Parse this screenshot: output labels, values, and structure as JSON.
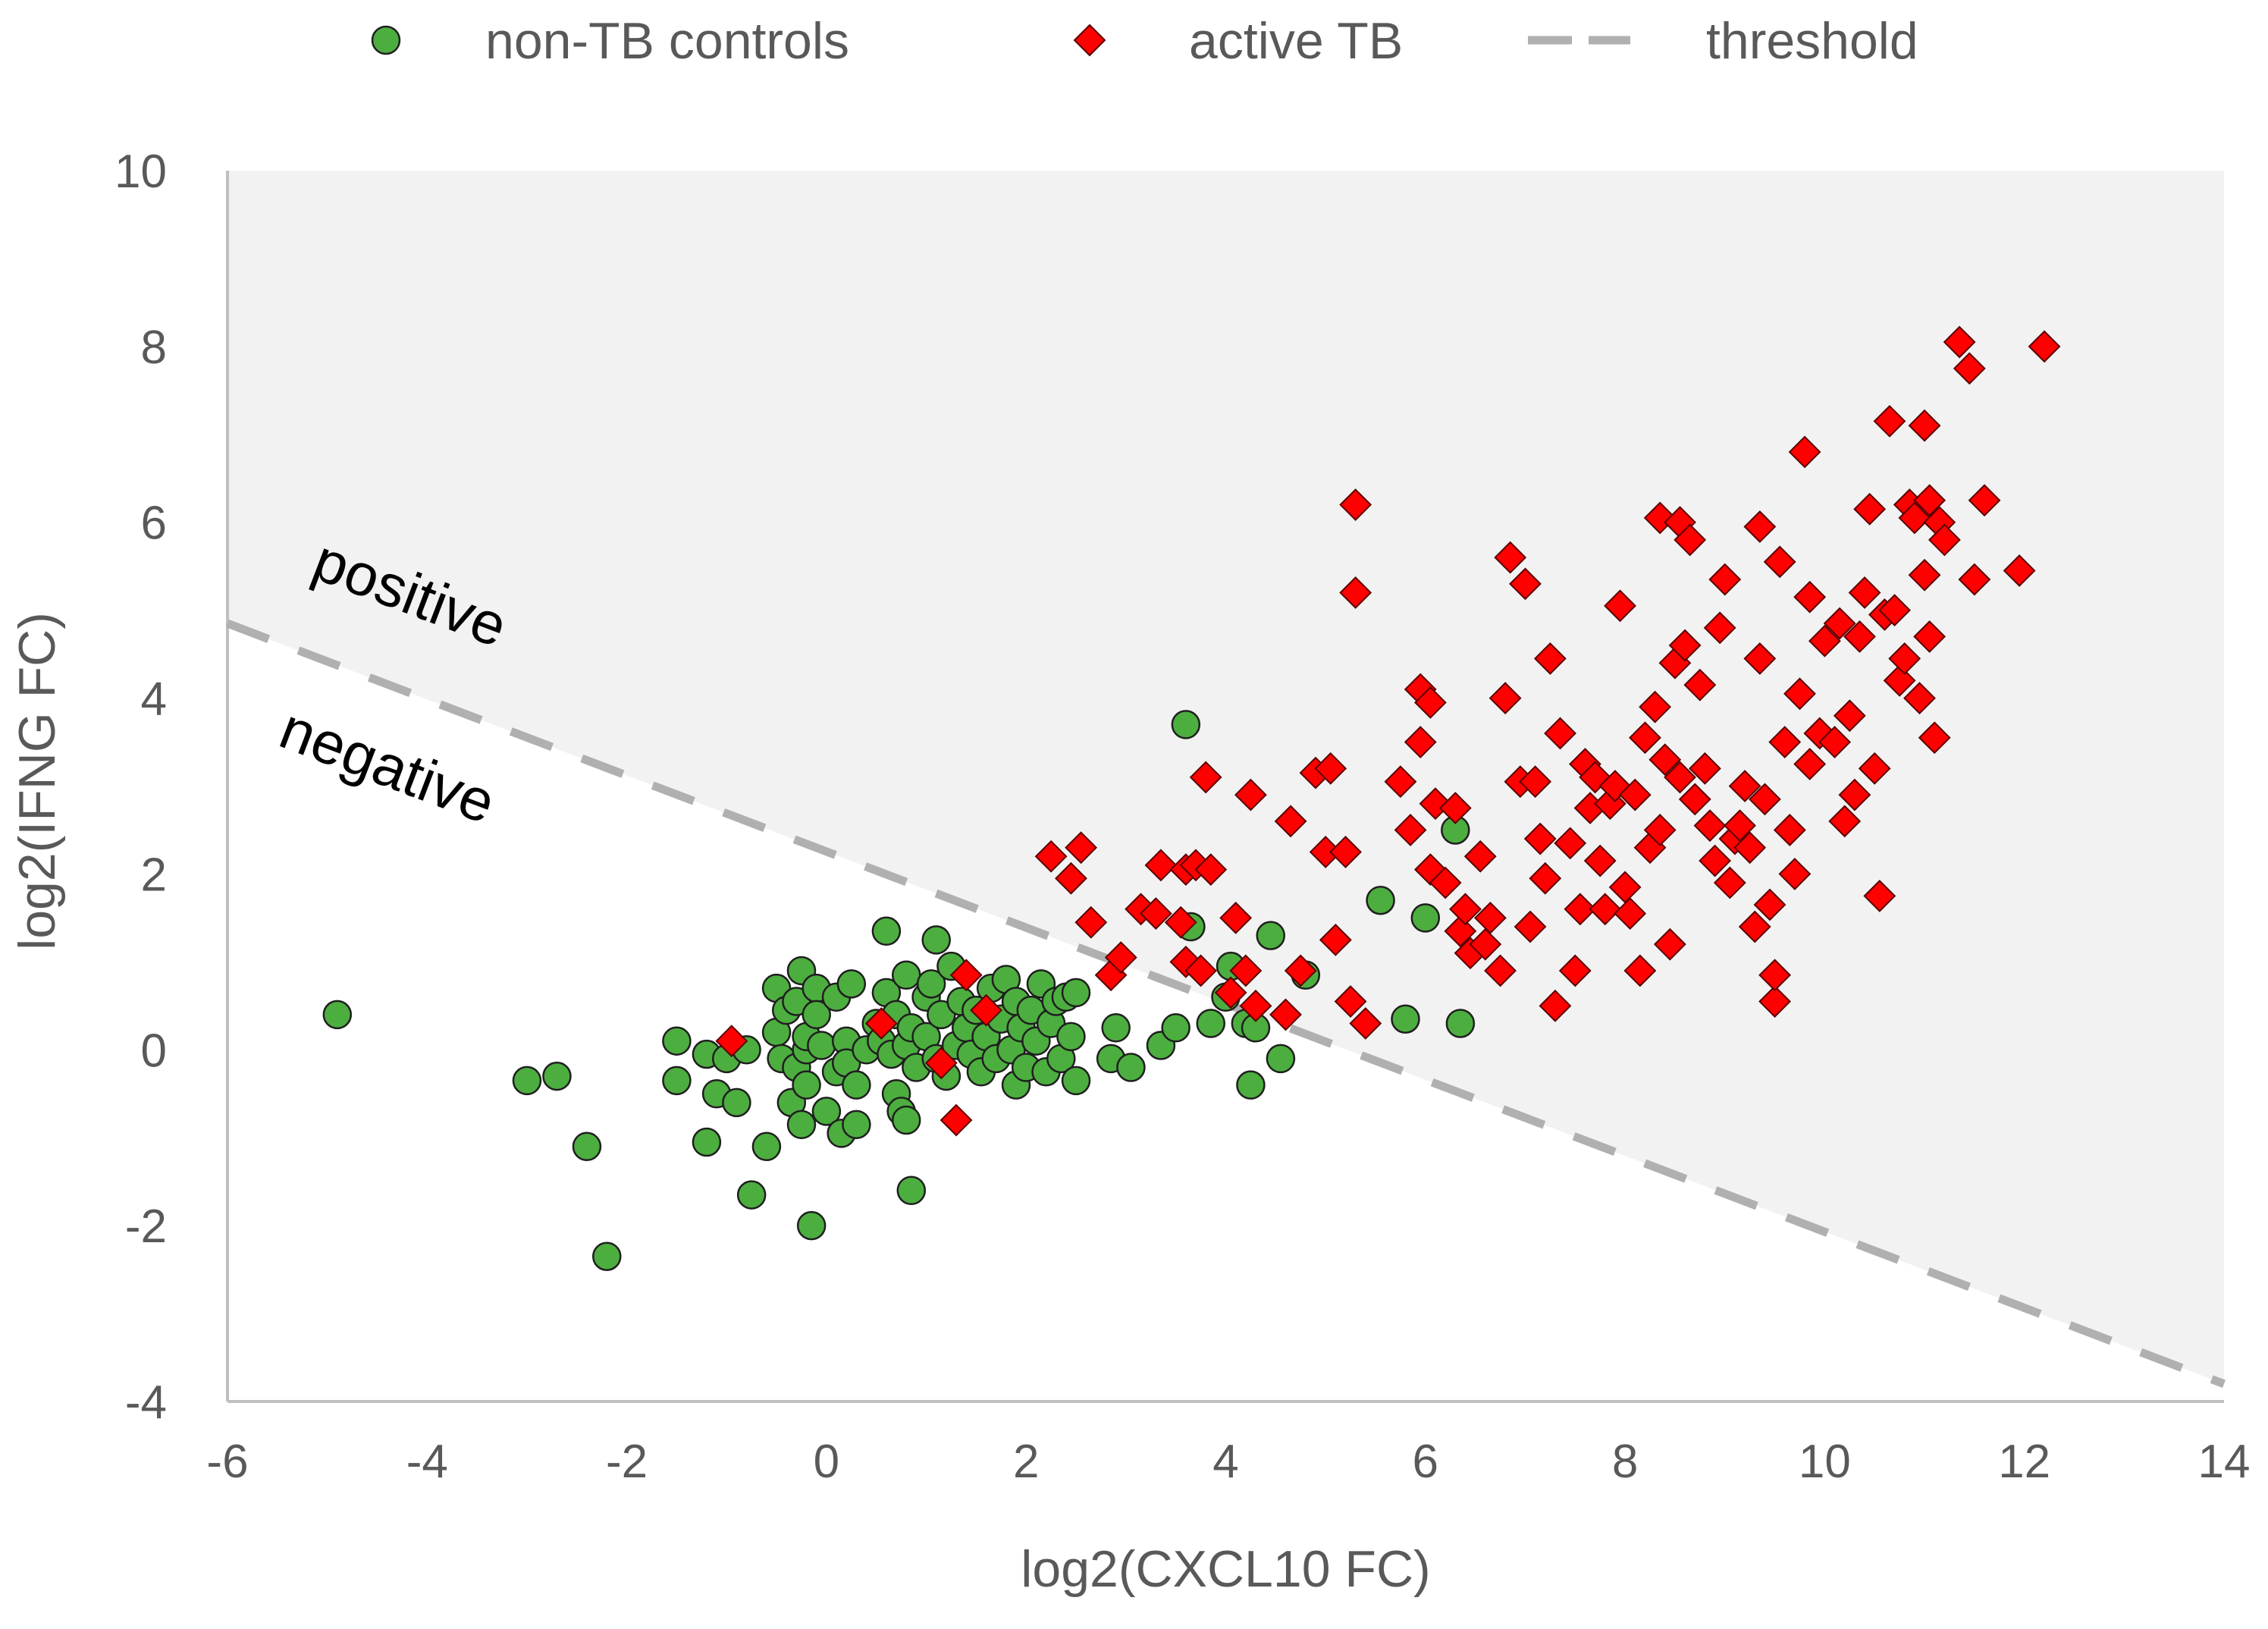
{
  "chart_data": {
    "type": "scatter",
    "title": "",
    "xlabel": "log2(CXCL10 FC)",
    "ylabel": "log2(IFNG FC)",
    "xlim": [
      -6,
      14
    ],
    "ylim": [
      -4,
      10
    ],
    "x_ticks": [
      "-6",
      "-4",
      "-2",
      "0",
      "2",
      "4",
      "6",
      "8",
      "10",
      "12",
      "14"
    ],
    "y_ticks": [
      "-4",
      "-2",
      "0",
      "2",
      "4",
      "6",
      "8",
      "10"
    ],
    "grid": false,
    "legend_position": "top",
    "shaded_region": "positive side of threshold shaded light gray",
    "colors": {
      "controls_fill": "#4cae3f",
      "controls_edge": "#1f1f1f",
      "tb_fill": "#ff0000",
      "tb_edge": "#5a0000",
      "threshold": "#b0b0b0",
      "shade": "#f2f2f2",
      "axis": "#bfbfbf"
    },
    "region_labels": {
      "positive": "positive",
      "negative": "negative"
    },
    "threshold": {
      "name": "threshold",
      "x": [
        -6,
        14
      ],
      "y": [
        4.85,
        -3.8
      ]
    },
    "series": [
      {
        "name": "non-TB controls",
        "marker": "circle",
        "points": [
          [
            -4.9,
            0.4
          ],
          [
            -3.0,
            -0.35
          ],
          [
            -2.7,
            -0.3
          ],
          [
            -2.4,
            -1.1
          ],
          [
            -2.2,
            -2.35
          ],
          [
            -1.5,
            0.1
          ],
          [
            -1.5,
            -0.35
          ],
          [
            -1.2,
            -0.05
          ],
          [
            -1.2,
            -1.05
          ],
          [
            -1.1,
            -0.5
          ],
          [
            -1.0,
            -0.1
          ],
          [
            -0.9,
            -0.6
          ],
          [
            -0.8,
            0.0
          ],
          [
            -0.75,
            -1.65
          ],
          [
            -0.6,
            -1.1
          ],
          [
            -0.5,
            0.7
          ],
          [
            -0.5,
            0.2
          ],
          [
            -0.45,
            -0.1
          ],
          [
            -0.4,
            0.45
          ],
          [
            -0.35,
            -0.6
          ],
          [
            -0.3,
            0.55
          ],
          [
            -0.3,
            -0.2
          ],
          [
            -0.25,
            0.9
          ],
          [
            -0.25,
            -0.85
          ],
          [
            -0.2,
            0.0
          ],
          [
            -0.2,
            0.15
          ],
          [
            -0.2,
            -0.4
          ],
          [
            -0.15,
            -2.0
          ],
          [
            -0.1,
            0.7
          ],
          [
            -0.1,
            0.4
          ],
          [
            -0.05,
            0.05
          ],
          [
            0.0,
            -0.7
          ],
          [
            0.1,
            -0.25
          ],
          [
            0.1,
            0.6
          ],
          [
            0.15,
            -0.95
          ],
          [
            0.2,
            0.1
          ],
          [
            0.2,
            -0.15
          ],
          [
            0.25,
            0.75
          ],
          [
            0.3,
            -0.4
          ],
          [
            0.3,
            -0.85
          ],
          [
            0.4,
            0.0
          ],
          [
            0.5,
            0.3
          ],
          [
            0.55,
            0.1
          ],
          [
            0.6,
            0.65
          ],
          [
            0.6,
            1.35
          ],
          [
            0.65,
            -0.05
          ],
          [
            0.7,
            0.4
          ],
          [
            0.7,
            -0.5
          ],
          [
            0.75,
            -0.7
          ],
          [
            0.8,
            0.85
          ],
          [
            0.8,
            0.05
          ],
          [
            0.8,
            -0.8
          ],
          [
            0.85,
            0.25
          ],
          [
            0.85,
            -1.6
          ],
          [
            0.9,
            -0.2
          ],
          [
            1.0,
            0.6
          ],
          [
            1.0,
            0.15
          ],
          [
            1.05,
            0.75
          ],
          [
            1.1,
            -0.1
          ],
          [
            1.1,
            1.25
          ],
          [
            1.15,
            0.4
          ],
          [
            1.2,
            -0.3
          ],
          [
            1.25,
            0.95
          ],
          [
            1.3,
            0.05
          ],
          [
            1.35,
            0.55
          ],
          [
            1.4,
            0.25
          ],
          [
            1.45,
            -0.05
          ],
          [
            1.5,
            0.45
          ],
          [
            1.55,
            -0.25
          ],
          [
            1.6,
            0.15
          ],
          [
            1.65,
            0.7
          ],
          [
            1.7,
            -0.1
          ],
          [
            1.75,
            0.35
          ],
          [
            1.8,
            0.8
          ],
          [
            1.85,
            0.0
          ],
          [
            1.9,
            0.55
          ],
          [
            1.9,
            -0.4
          ],
          [
            1.95,
            0.25
          ],
          [
            2.0,
            -0.2
          ],
          [
            2.05,
            0.45
          ],
          [
            2.1,
            0.1
          ],
          [
            2.15,
            0.75
          ],
          [
            2.2,
            -0.25
          ],
          [
            2.25,
            0.3
          ],
          [
            2.3,
            0.55
          ],
          [
            2.35,
            -0.1
          ],
          [
            2.4,
            0.6
          ],
          [
            2.45,
            0.15
          ],
          [
            2.5,
            -0.35
          ],
          [
            2.5,
            0.65
          ],
          [
            2.9,
            0.25
          ],
          [
            2.85,
            -0.1
          ],
          [
            3.05,
            -0.2
          ],
          [
            3.35,
            0.05
          ],
          [
            3.5,
            0.25
          ],
          [
            3.6,
            3.7
          ],
          [
            3.65,
            1.4
          ],
          [
            3.85,
            0.3
          ],
          [
            4.0,
            0.6
          ],
          [
            4.05,
            0.95
          ],
          [
            4.2,
            0.3
          ],
          [
            4.25,
            -0.4
          ],
          [
            4.3,
            0.25
          ],
          [
            4.45,
            1.3
          ],
          [
            4.55,
            -0.1
          ],
          [
            4.8,
            0.85
          ],
          [
            5.55,
            1.7
          ],
          [
            5.8,
            0.35
          ],
          [
            6.0,
            1.5
          ],
          [
            6.3,
            2.5
          ],
          [
            6.35,
            0.3
          ]
        ]
      },
      {
        "name": "active TB",
        "marker": "diamond",
        "points": [
          [
            -0.95,
            0.1
          ],
          [
            0.55,
            0.3
          ],
          [
            1.15,
            -0.15
          ],
          [
            1.3,
            -0.8
          ],
          [
            1.4,
            0.85
          ],
          [
            1.6,
            0.45
          ],
          [
            2.25,
            2.2
          ],
          [
            2.45,
            1.95
          ],
          [
            2.55,
            2.3
          ],
          [
            2.65,
            1.45
          ],
          [
            2.85,
            0.85
          ],
          [
            2.95,
            1.05
          ],
          [
            3.15,
            1.6
          ],
          [
            3.3,
            1.55
          ],
          [
            3.35,
            2.1
          ],
          [
            3.55,
            1.45
          ],
          [
            3.6,
            1.0
          ],
          [
            3.6,
            2.05
          ],
          [
            3.7,
            2.1
          ],
          [
            3.75,
            0.9
          ],
          [
            3.8,
            3.1
          ],
          [
            3.85,
            2.05
          ],
          [
            4.05,
            0.65
          ],
          [
            4.1,
            1.5
          ],
          [
            4.2,
            0.9
          ],
          [
            4.25,
            2.9
          ],
          [
            4.3,
            0.5
          ],
          [
            4.6,
            0.4
          ],
          [
            4.65,
            2.6
          ],
          [
            4.75,
            0.9
          ],
          [
            4.9,
            3.15
          ],
          [
            5.0,
            2.25
          ],
          [
            5.05,
            3.2
          ],
          [
            5.1,
            1.25
          ],
          [
            5.2,
            2.25
          ],
          [
            5.25,
            0.55
          ],
          [
            5.3,
            6.2
          ],
          [
            5.3,
            5.2
          ],
          [
            5.4,
            0.3
          ],
          [
            5.75,
            3.05
          ],
          [
            5.85,
            2.5
          ],
          [
            5.95,
            4.1
          ],
          [
            5.95,
            3.5
          ],
          [
            6.05,
            2.05
          ],
          [
            6.05,
            3.95
          ],
          [
            6.1,
            2.8
          ],
          [
            6.2,
            1.9
          ],
          [
            6.3,
            2.75
          ],
          [
            6.35,
            1.35
          ],
          [
            6.4,
            1.6
          ],
          [
            6.45,
            1.1
          ],
          [
            6.55,
            2.2
          ],
          [
            6.6,
            1.2
          ],
          [
            6.65,
            1.5
          ],
          [
            6.75,
            0.9
          ],
          [
            6.8,
            4.0
          ],
          [
            6.85,
            5.6
          ],
          [
            6.95,
            3.05
          ],
          [
            7.0,
            5.3
          ],
          [
            7.05,
            1.4
          ],
          [
            7.1,
            3.05
          ],
          [
            7.15,
            2.4
          ],
          [
            7.2,
            1.95
          ],
          [
            7.25,
            4.45
          ],
          [
            7.3,
            0.5
          ],
          [
            7.35,
            3.6
          ],
          [
            7.45,
            2.35
          ],
          [
            7.5,
            0.9
          ],
          [
            7.55,
            1.6
          ],
          [
            7.6,
            3.25
          ],
          [
            7.65,
            2.75
          ],
          [
            7.7,
            3.1
          ],
          [
            7.75,
            2.15
          ],
          [
            7.8,
            1.6
          ],
          [
            7.85,
            2.8
          ],
          [
            7.9,
            3.0
          ],
          [
            7.95,
            5.05
          ],
          [
            8.0,
            1.85
          ],
          [
            8.05,
            1.55
          ],
          [
            8.1,
            2.9
          ],
          [
            8.15,
            0.9
          ],
          [
            8.2,
            3.55
          ],
          [
            8.25,
            2.3
          ],
          [
            8.3,
            3.9
          ],
          [
            8.35,
            6.05
          ],
          [
            8.35,
            2.5
          ],
          [
            8.4,
            3.3
          ],
          [
            8.45,
            1.2
          ],
          [
            8.5,
            4.4
          ],
          [
            8.55,
            6.0
          ],
          [
            8.55,
            3.1
          ],
          [
            8.6,
            4.6
          ],
          [
            8.65,
            5.8
          ],
          [
            8.7,
            2.85
          ],
          [
            8.75,
            4.15
          ],
          [
            8.8,
            3.2
          ],
          [
            8.85,
            2.55
          ],
          [
            8.9,
            2.15
          ],
          [
            8.95,
            4.8
          ],
          [
            9.0,
            5.35
          ],
          [
            9.05,
            1.9
          ],
          [
            9.1,
            2.4
          ],
          [
            9.15,
            2.55
          ],
          [
            9.2,
            3.0
          ],
          [
            9.25,
            2.3
          ],
          [
            9.3,
            1.4
          ],
          [
            9.35,
            5.95
          ],
          [
            9.35,
            4.45
          ],
          [
            9.4,
            2.85
          ],
          [
            9.45,
            1.65
          ],
          [
            9.5,
            0.55
          ],
          [
            9.5,
            0.85
          ],
          [
            9.55,
            5.55
          ],
          [
            9.6,
            3.5
          ],
          [
            9.65,
            2.5
          ],
          [
            9.7,
            2.0
          ],
          [
            9.75,
            4.05
          ],
          [
            9.8,
            6.8
          ],
          [
            9.85,
            5.15
          ],
          [
            9.85,
            3.25
          ],
          [
            9.95,
            3.6
          ],
          [
            10.0,
            4.65
          ],
          [
            10.1,
            3.5
          ],
          [
            10.15,
            4.85
          ],
          [
            10.2,
            2.6
          ],
          [
            10.25,
            3.8
          ],
          [
            10.3,
            2.9
          ],
          [
            10.35,
            4.7
          ],
          [
            10.4,
            5.2
          ],
          [
            10.45,
            6.15
          ],
          [
            10.5,
            3.2
          ],
          [
            10.55,
            1.75
          ],
          [
            10.6,
            4.95
          ],
          [
            10.65,
            7.15
          ],
          [
            10.7,
            5.0
          ],
          [
            10.75,
            4.2
          ],
          [
            10.8,
            4.45
          ],
          [
            10.85,
            6.2
          ],
          [
            10.9,
            6.05
          ],
          [
            10.95,
            4.0
          ],
          [
            11.0,
            7.1
          ],
          [
            11.0,
            5.4
          ],
          [
            11.05,
            6.25
          ],
          [
            11.05,
            4.7
          ],
          [
            11.1,
            3.55
          ],
          [
            11.15,
            6.0
          ],
          [
            11.2,
            5.8
          ],
          [
            11.35,
            8.05
          ],
          [
            11.45,
            7.75
          ],
          [
            11.5,
            5.35
          ],
          [
            11.6,
            6.25
          ],
          [
            11.95,
            5.45
          ],
          [
            12.2,
            8.0
          ]
        ]
      }
    ]
  }
}
